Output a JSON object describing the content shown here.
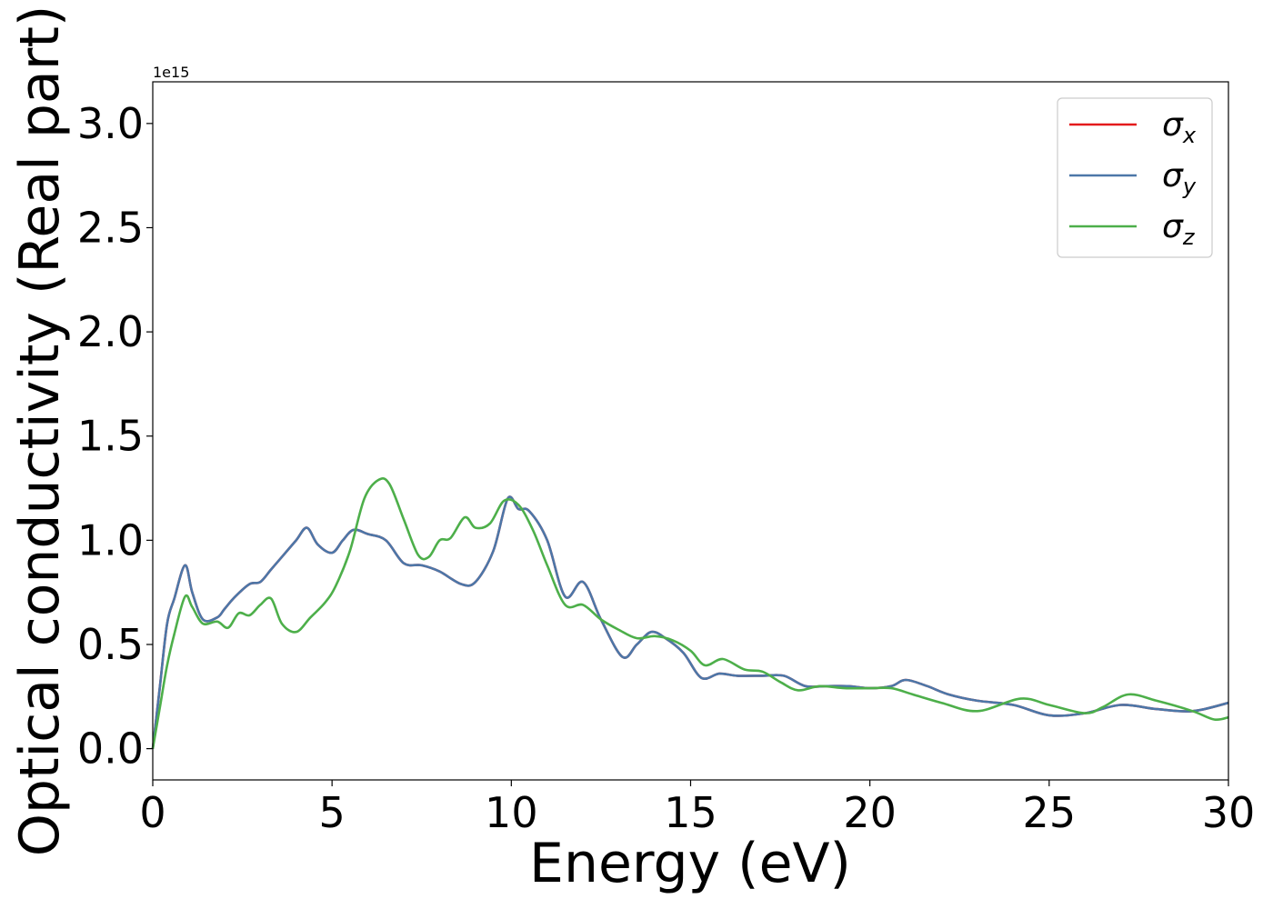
{
  "chart_data": {
    "type": "line",
    "title": "",
    "xlabel": "Energy (eV)",
    "ylabel": "Optical conductivity (Real part)",
    "y_offset_label": "1e15",
    "xlim": [
      0,
      30
    ],
    "ylim": [
      -0.15,
      3.2
    ],
    "xticks": [
      0,
      5,
      10,
      15,
      20,
      25,
      30
    ],
    "xtick_labels": [
      "0",
      "5",
      "10",
      "15",
      "20",
      "25",
      "30"
    ],
    "yticks": [
      0.0,
      0.5,
      1.0,
      1.5,
      2.0,
      2.5,
      3.0
    ],
    "ytick_labels": [
      "0.0",
      "0.5",
      "1.0",
      "1.5",
      "2.0",
      "2.5",
      "3.0"
    ],
    "grid": false,
    "legend_position": "top-right",
    "series": [
      {
        "name": "σx",
        "symbol": "σ",
        "subscript": "x",
        "color": "#e41a1c",
        "x": [
          0,
          0.2,
          0.4,
          0.6,
          0.9,
          1.1,
          1.4,
          1.8,
          2.0,
          2.3,
          2.7,
          3.0,
          3.3,
          3.6,
          4.0,
          4.3,
          4.6,
          5.0,
          5.3,
          5.6,
          6.0,
          6.5,
          7.0,
          7.5,
          8.0,
          8.6,
          9.0,
          9.5,
          9.9,
          10.2,
          10.5,
          11.0,
          11.5,
          12.0,
          12.5,
          13.1,
          13.5,
          13.9,
          14.3,
          14.8,
          15.3,
          15.8,
          16.3,
          17.0,
          17.6,
          18.2,
          18.8,
          19.4,
          20.0,
          20.6,
          21.0,
          21.6,
          22.2,
          23.0,
          24.0,
          25.0,
          26.0,
          27.0,
          28.0,
          29.0,
          30.0
        ],
        "y": [
          0.0,
          0.3,
          0.6,
          0.72,
          0.88,
          0.75,
          0.62,
          0.63,
          0.67,
          0.73,
          0.79,
          0.8,
          0.86,
          0.92,
          1.0,
          1.06,
          0.98,
          0.94,
          1.0,
          1.05,
          1.03,
          1.0,
          0.89,
          0.88,
          0.85,
          0.79,
          0.8,
          0.95,
          1.2,
          1.15,
          1.14,
          1.0,
          0.73,
          0.8,
          0.62,
          0.44,
          0.5,
          0.56,
          0.53,
          0.46,
          0.34,
          0.36,
          0.35,
          0.35,
          0.35,
          0.3,
          0.3,
          0.3,
          0.29,
          0.3,
          0.33,
          0.3,
          0.26,
          0.23,
          0.21,
          0.16,
          0.17,
          0.21,
          0.19,
          0.18,
          0.22
        ]
      },
      {
        "name": "σy",
        "symbol": "σ",
        "subscript": "y",
        "color": "#4c77a8",
        "x": [
          0,
          0.2,
          0.4,
          0.6,
          0.9,
          1.1,
          1.4,
          1.8,
          2.0,
          2.3,
          2.7,
          3.0,
          3.3,
          3.6,
          4.0,
          4.3,
          4.6,
          5.0,
          5.3,
          5.6,
          6.0,
          6.5,
          7.0,
          7.5,
          8.0,
          8.6,
          9.0,
          9.5,
          9.9,
          10.2,
          10.5,
          11.0,
          11.5,
          12.0,
          12.5,
          13.1,
          13.5,
          13.9,
          14.3,
          14.8,
          15.3,
          15.8,
          16.3,
          17.0,
          17.6,
          18.2,
          18.8,
          19.4,
          20.0,
          20.6,
          21.0,
          21.6,
          22.2,
          23.0,
          24.0,
          25.0,
          26.0,
          27.0,
          28.0,
          29.0,
          30.0
        ],
        "y": [
          0.0,
          0.3,
          0.6,
          0.72,
          0.88,
          0.75,
          0.62,
          0.63,
          0.67,
          0.73,
          0.79,
          0.8,
          0.86,
          0.92,
          1.0,
          1.06,
          0.98,
          0.94,
          1.0,
          1.05,
          1.03,
          1.0,
          0.89,
          0.88,
          0.85,
          0.79,
          0.8,
          0.95,
          1.2,
          1.15,
          1.14,
          1.0,
          0.73,
          0.8,
          0.62,
          0.44,
          0.5,
          0.56,
          0.53,
          0.46,
          0.34,
          0.36,
          0.35,
          0.35,
          0.35,
          0.3,
          0.3,
          0.3,
          0.29,
          0.3,
          0.33,
          0.3,
          0.26,
          0.23,
          0.21,
          0.16,
          0.17,
          0.21,
          0.19,
          0.18,
          0.22
        ]
      },
      {
        "name": "σz",
        "symbol": "σ",
        "subscript": "z",
        "color": "#4daf4a",
        "x": [
          0,
          0.2,
          0.4,
          0.6,
          0.9,
          1.1,
          1.4,
          1.8,
          2.1,
          2.4,
          2.7,
          3.0,
          3.3,
          3.6,
          4.0,
          4.4,
          4.8,
          5.1,
          5.5,
          5.9,
          6.3,
          6.6,
          7.0,
          7.4,
          7.7,
          8.0,
          8.3,
          8.7,
          9.0,
          9.4,
          9.8,
          10.2,
          10.6,
          11.0,
          11.5,
          12.0,
          12.5,
          13.0,
          13.5,
          14.0,
          14.5,
          15.0,
          15.4,
          15.9,
          16.5,
          17.0,
          17.5,
          18.0,
          18.6,
          19.3,
          20.0,
          20.6,
          21.2,
          22.0,
          23.0,
          24.2,
          25.0,
          26.0,
          26.5,
          27.2,
          28.0,
          29.0,
          29.6,
          30.0
        ],
        "y": [
          0.0,
          0.2,
          0.4,
          0.55,
          0.73,
          0.68,
          0.6,
          0.61,
          0.58,
          0.65,
          0.64,
          0.69,
          0.72,
          0.6,
          0.56,
          0.63,
          0.7,
          0.78,
          0.95,
          1.2,
          1.29,
          1.27,
          1.1,
          0.93,
          0.92,
          1.0,
          1.01,
          1.11,
          1.06,
          1.08,
          1.19,
          1.17,
          1.05,
          0.88,
          0.69,
          0.69,
          0.62,
          0.57,
          0.53,
          0.54,
          0.52,
          0.47,
          0.4,
          0.43,
          0.38,
          0.37,
          0.32,
          0.28,
          0.3,
          0.29,
          0.29,
          0.29,
          0.26,
          0.22,
          0.18,
          0.24,
          0.21,
          0.17,
          0.2,
          0.26,
          0.23,
          0.18,
          0.14,
          0.15
        ]
      }
    ]
  }
}
